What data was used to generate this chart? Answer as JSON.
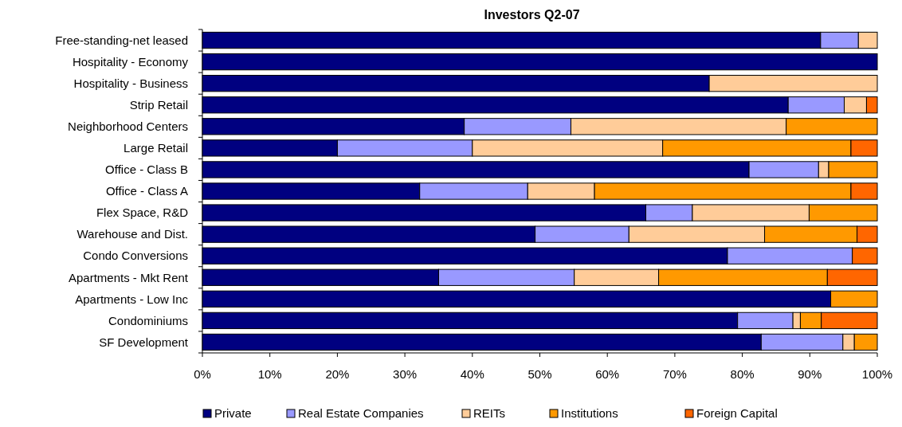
{
  "chart_data": {
    "type": "bar",
    "orientation": "horizontal",
    "stacked": true,
    "title": "Investors Q2-07",
    "categories": [
      "Free-standing-net leased",
      "Hospitality - Economy",
      "Hospitality - Business",
      "Strip Retail",
      "Neighborhood Centers",
      "Large Retail",
      "Office - Class B",
      "Office - Class A",
      "Flex Space, R&D",
      "Warehouse and Dist.",
      "Condo Conversions",
      "Apartments - Mkt Rent",
      "Apartments - Low Inc",
      "Condominiums",
      "SF Development"
    ],
    "series": [
      {
        "name": "Private",
        "color": "#000080",
        "values": [
          91.6,
          100,
          75.1,
          86.8,
          38.8,
          20.0,
          81.0,
          32.2,
          65.7,
          49.3,
          77.8,
          35.0,
          93.1,
          79.3,
          82.8
        ]
      },
      {
        "name": "Real Estate Companies",
        "color": "#9999ff",
        "values": [
          5.6,
          0,
          0,
          8.3,
          15.8,
          20.0,
          10.3,
          16.0,
          6.9,
          13.9,
          18.5,
          20.1,
          0,
          8.2,
          12.1
        ]
      },
      {
        "name": "REITs",
        "color": "#ffcc99",
        "values": [
          2.8,
          0,
          24.9,
          3.3,
          31.9,
          28.2,
          1.5,
          9.9,
          17.3,
          20.1,
          0,
          12.5,
          0,
          1.1,
          1.7
        ]
      },
      {
        "name": "Institutions",
        "color": "#ff9900",
        "values": [
          0,
          0,
          0,
          0,
          13.5,
          27.9,
          7.2,
          38.0,
          10.1,
          13.7,
          0,
          25.0,
          6.9,
          3.1,
          3.4
        ]
      },
      {
        "name": "Foreign Capital",
        "color": "#ff6600",
        "values": [
          0,
          0,
          0,
          1.6,
          0,
          3.9,
          0,
          3.9,
          0,
          3.0,
          3.7,
          7.4,
          0,
          8.3,
          0
        ]
      }
    ],
    "xlim": [
      0,
      100
    ],
    "xticks": [
      {
        "value": 0,
        "label": "0%"
      },
      {
        "value": 10,
        "label": "10%"
      },
      {
        "value": 20,
        "label": "20%"
      },
      {
        "value": 30,
        "label": "30%"
      },
      {
        "value": 40,
        "label": "40%"
      },
      {
        "value": 50,
        "label": "50%"
      },
      {
        "value": 60,
        "label": "60%"
      },
      {
        "value": 70,
        "label": "70%"
      },
      {
        "value": 80,
        "label": "80%"
      },
      {
        "value": 90,
        "label": "90%"
      },
      {
        "value": 100,
        "label": "100%"
      }
    ],
    "legend": "bottom"
  }
}
